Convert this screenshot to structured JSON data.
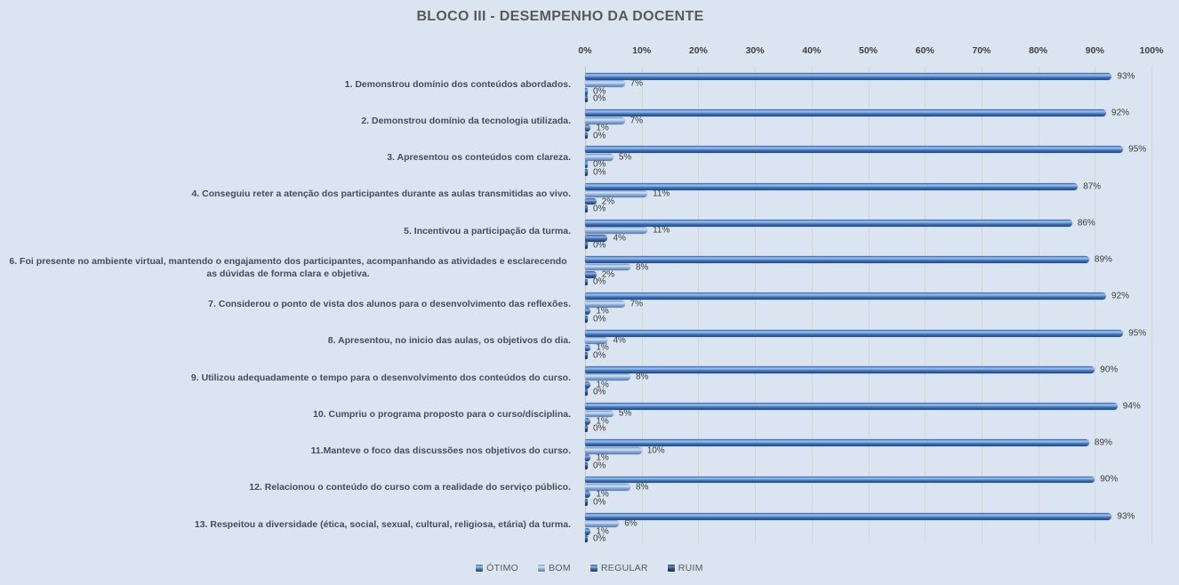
{
  "chart_data": {
    "type": "bar",
    "orientation": "horizontal",
    "title": "BLOCO III - DESEMPENHO  DA DOCENTE",
    "categories": [
      "1. Demonstrou domínio dos conteúdos abordados.",
      "2. Demonstrou domínio da tecnologia utilizada.",
      "3. Apresentou os conteúdos com clareza.",
      "4. Conseguiu reter a atenção dos participantes durante as aulas transmitidas ao vivo.",
      "5. Incentivou  a participação da turma.",
      "6. Foi presente no ambiente virtual, mantendo o engajamento dos participantes, acompanhando as atividades e esclarecendo as dúvidas de forma clara e objetiva.",
      "7. Considerou o ponto de vista dos alunos para o desenvolvimento das reflexões.",
      "8. Apresentou, no inicio das aulas, os objetivos do dia.",
      "9. Utilizou adequadamente o tempo para o desenvolvimento dos conteúdos do curso.",
      "10. Cumpriu o programa proposto para o curso/disciplina.",
      "11.Manteve o foco das discussões nos objetivos do curso.",
      "12. Relacionou o conteúdo do curso com a realidade do serviço público.",
      "13. Respeitou a diversidade (ética, social, sexual, cultural, religiosa, etária) da turma."
    ],
    "series": [
      {
        "name": "ÓTIMO",
        "color": "#3a6fb5",
        "values": [
          93,
          92,
          95,
          87,
          86,
          89,
          92,
          95,
          90,
          94,
          89,
          90,
          93
        ]
      },
      {
        "name": "BOM",
        "color": "#8fafd9",
        "values": [
          7,
          7,
          5,
          11,
          11,
          8,
          7,
          4,
          8,
          5,
          10,
          8,
          6
        ]
      },
      {
        "name": "REGULAR",
        "color": "#2d5e9f",
        "values": [
          0,
          1,
          0,
          2,
          4,
          2,
          1,
          1,
          1,
          1,
          1,
          1,
          1
        ]
      },
      {
        "name": "RUIM",
        "color": "#1d3f6e",
        "values": [
          0,
          0,
          0,
          0,
          0,
          0,
          0,
          0,
          0,
          0,
          0,
          0,
          0
        ]
      }
    ],
    "xlim": [
      0,
      100
    ],
    "xticks": [
      "0%",
      "10%",
      "20%",
      "30%",
      "40%",
      "50%",
      "60%",
      "70%",
      "80%",
      "90%",
      "100%"
    ],
    "value_label_suffix": "%",
    "grid": "vertical",
    "legend_position": "bottom",
    "background_color": "#dbe5f1"
  }
}
